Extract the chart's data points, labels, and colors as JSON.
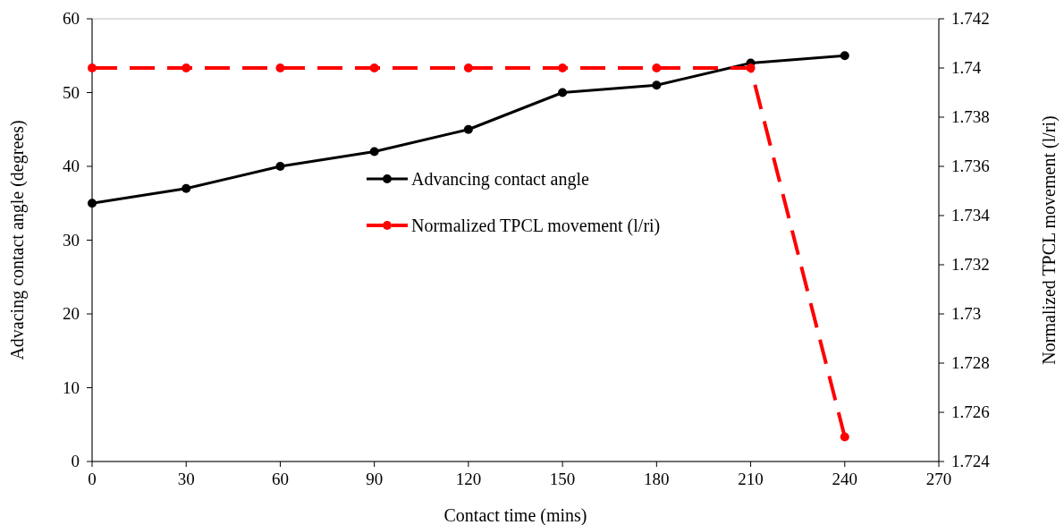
{
  "chart_data": {
    "type": "line",
    "xlabel": "Contact time (mins)",
    "ylabel": "Advacing contact angle (degrees)",
    "y2label": "Normalized TPCL movement (l/ri)",
    "x": [
      0,
      30,
      60,
      90,
      120,
      150,
      180,
      210,
      240
    ],
    "series": [
      {
        "name": "Advancing contact angle",
        "color": "#000000",
        "values": [
          35,
          37,
          40,
          42,
          45,
          50,
          51,
          54,
          55
        ],
        "line_style": "solid"
      },
      {
        "name": "Normalized TPCL movement (l/ri)",
        "color": "#ff0000",
        "axis": "y2",
        "values": [
          1.74,
          1.74,
          1.74,
          1.74,
          1.74,
          1.74,
          1.74,
          1.74,
          1.725
        ],
        "line_style": "dashed"
      }
    ],
    "xlim": [
      0,
      270
    ],
    "xticks": [
      0,
      30,
      60,
      90,
      120,
      150,
      180,
      210,
      240,
      270
    ],
    "ylim": [
      0,
      60
    ],
    "yticks": [
      0,
      10,
      20,
      30,
      40,
      50,
      60
    ],
    "y2lim": [
      1.724,
      1.742
    ],
    "y2ticks": [
      1.724,
      1.726,
      1.728,
      1.73,
      1.732,
      1.734,
      1.736,
      1.738,
      1.74,
      1.742
    ],
    "marker": "circle",
    "grid": false,
    "legend": "center"
  }
}
